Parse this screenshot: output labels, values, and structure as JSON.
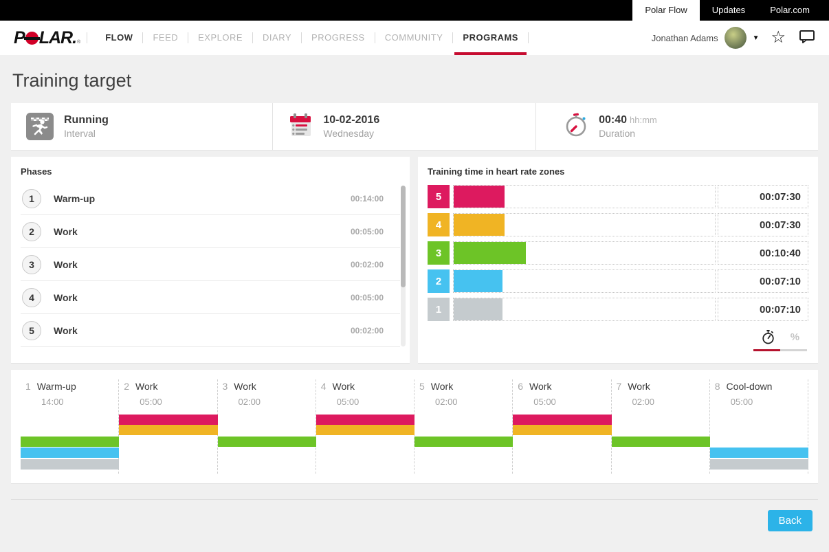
{
  "topbar": {
    "tabs": [
      {
        "label": "Polar Flow",
        "active": true
      },
      {
        "label": "Updates",
        "active": false
      },
      {
        "label": "Polar.com",
        "active": false
      }
    ]
  },
  "navbar": {
    "logo_text": "POLAR.",
    "logo_registered": "®",
    "items": [
      {
        "label": "FLOW",
        "dark": true,
        "active": false
      },
      {
        "label": "FEED",
        "dark": false,
        "active": false
      },
      {
        "label": "EXPLORE",
        "dark": false,
        "active": false
      },
      {
        "label": "DIARY",
        "dark": false,
        "active": false
      },
      {
        "label": "PROGRESS",
        "dark": false,
        "active": false
      },
      {
        "label": "COMMUNITY",
        "dark": false,
        "active": false
      },
      {
        "label": "PROGRAMS",
        "dark": true,
        "active": true
      }
    ],
    "user_name": "Jonathan Adams"
  },
  "page": {
    "title": "Training target"
  },
  "summary": {
    "sport": {
      "name": "Running",
      "type": "Interval"
    },
    "date": {
      "value": "10-02-2016",
      "day": "Wednesday"
    },
    "duration": {
      "value": "00:40",
      "unit": "hh:mm",
      "label": "Duration"
    }
  },
  "phases_panel": {
    "title": "Phases",
    "phases": [
      {
        "num": "1",
        "name": "Warm-up",
        "time": "00:14:00"
      },
      {
        "num": "2",
        "name": "Work",
        "time": "00:05:00"
      },
      {
        "num": "3",
        "name": "Work",
        "time": "00:02:00"
      },
      {
        "num": "4",
        "name": "Work",
        "time": "00:05:00"
      },
      {
        "num": "5",
        "name": "Work",
        "time": "00:02:00"
      }
    ]
  },
  "zones_panel": {
    "title": "Training time in heart rate zones",
    "percent_label": "%",
    "zones": [
      {
        "zone": "5",
        "time": "00:07:30",
        "seconds": 450,
        "color": "#dd1a5f"
      },
      {
        "zone": "4",
        "time": "00:07:30",
        "seconds": 450,
        "color": "#f0b424"
      },
      {
        "zone": "3",
        "time": "00:10:40",
        "seconds": 640,
        "color": "#6dc427"
      },
      {
        "zone": "2",
        "time": "00:07:10",
        "seconds": 430,
        "color": "#46c2f0"
      },
      {
        "zone": "1",
        "time": "00:07:10",
        "seconds": 430,
        "color": "#c5cbce"
      }
    ]
  },
  "timeline": {
    "zone_colors": {
      "5": "#dd1a5f",
      "4": "#f0b424",
      "3": "#6dc427",
      "2": "#46c2f0",
      "1": "#c5cbce"
    },
    "phases": [
      {
        "num": "1",
        "name": "Warm-up",
        "time": "14:00",
        "zones": [
          "3",
          "2",
          "1"
        ]
      },
      {
        "num": "2",
        "name": "Work",
        "time": "05:00",
        "zones": [
          "5",
          "4"
        ]
      },
      {
        "num": "3",
        "name": "Work",
        "time": "02:00",
        "zones": [
          "3"
        ]
      },
      {
        "num": "4",
        "name": "Work",
        "time": "05:00",
        "zones": [
          "5",
          "4"
        ]
      },
      {
        "num": "5",
        "name": "Work",
        "time": "02:00",
        "zones": [
          "3"
        ]
      },
      {
        "num": "6",
        "name": "Work",
        "time": "05:00",
        "zones": [
          "5",
          "4"
        ]
      },
      {
        "num": "7",
        "name": "Work",
        "time": "02:00",
        "zones": [
          "3"
        ]
      },
      {
        "num": "8",
        "name": "Cool-down",
        "time": "05:00",
        "zones": [
          "2",
          "1"
        ]
      }
    ]
  },
  "footer": {
    "back_label": "Back"
  }
}
